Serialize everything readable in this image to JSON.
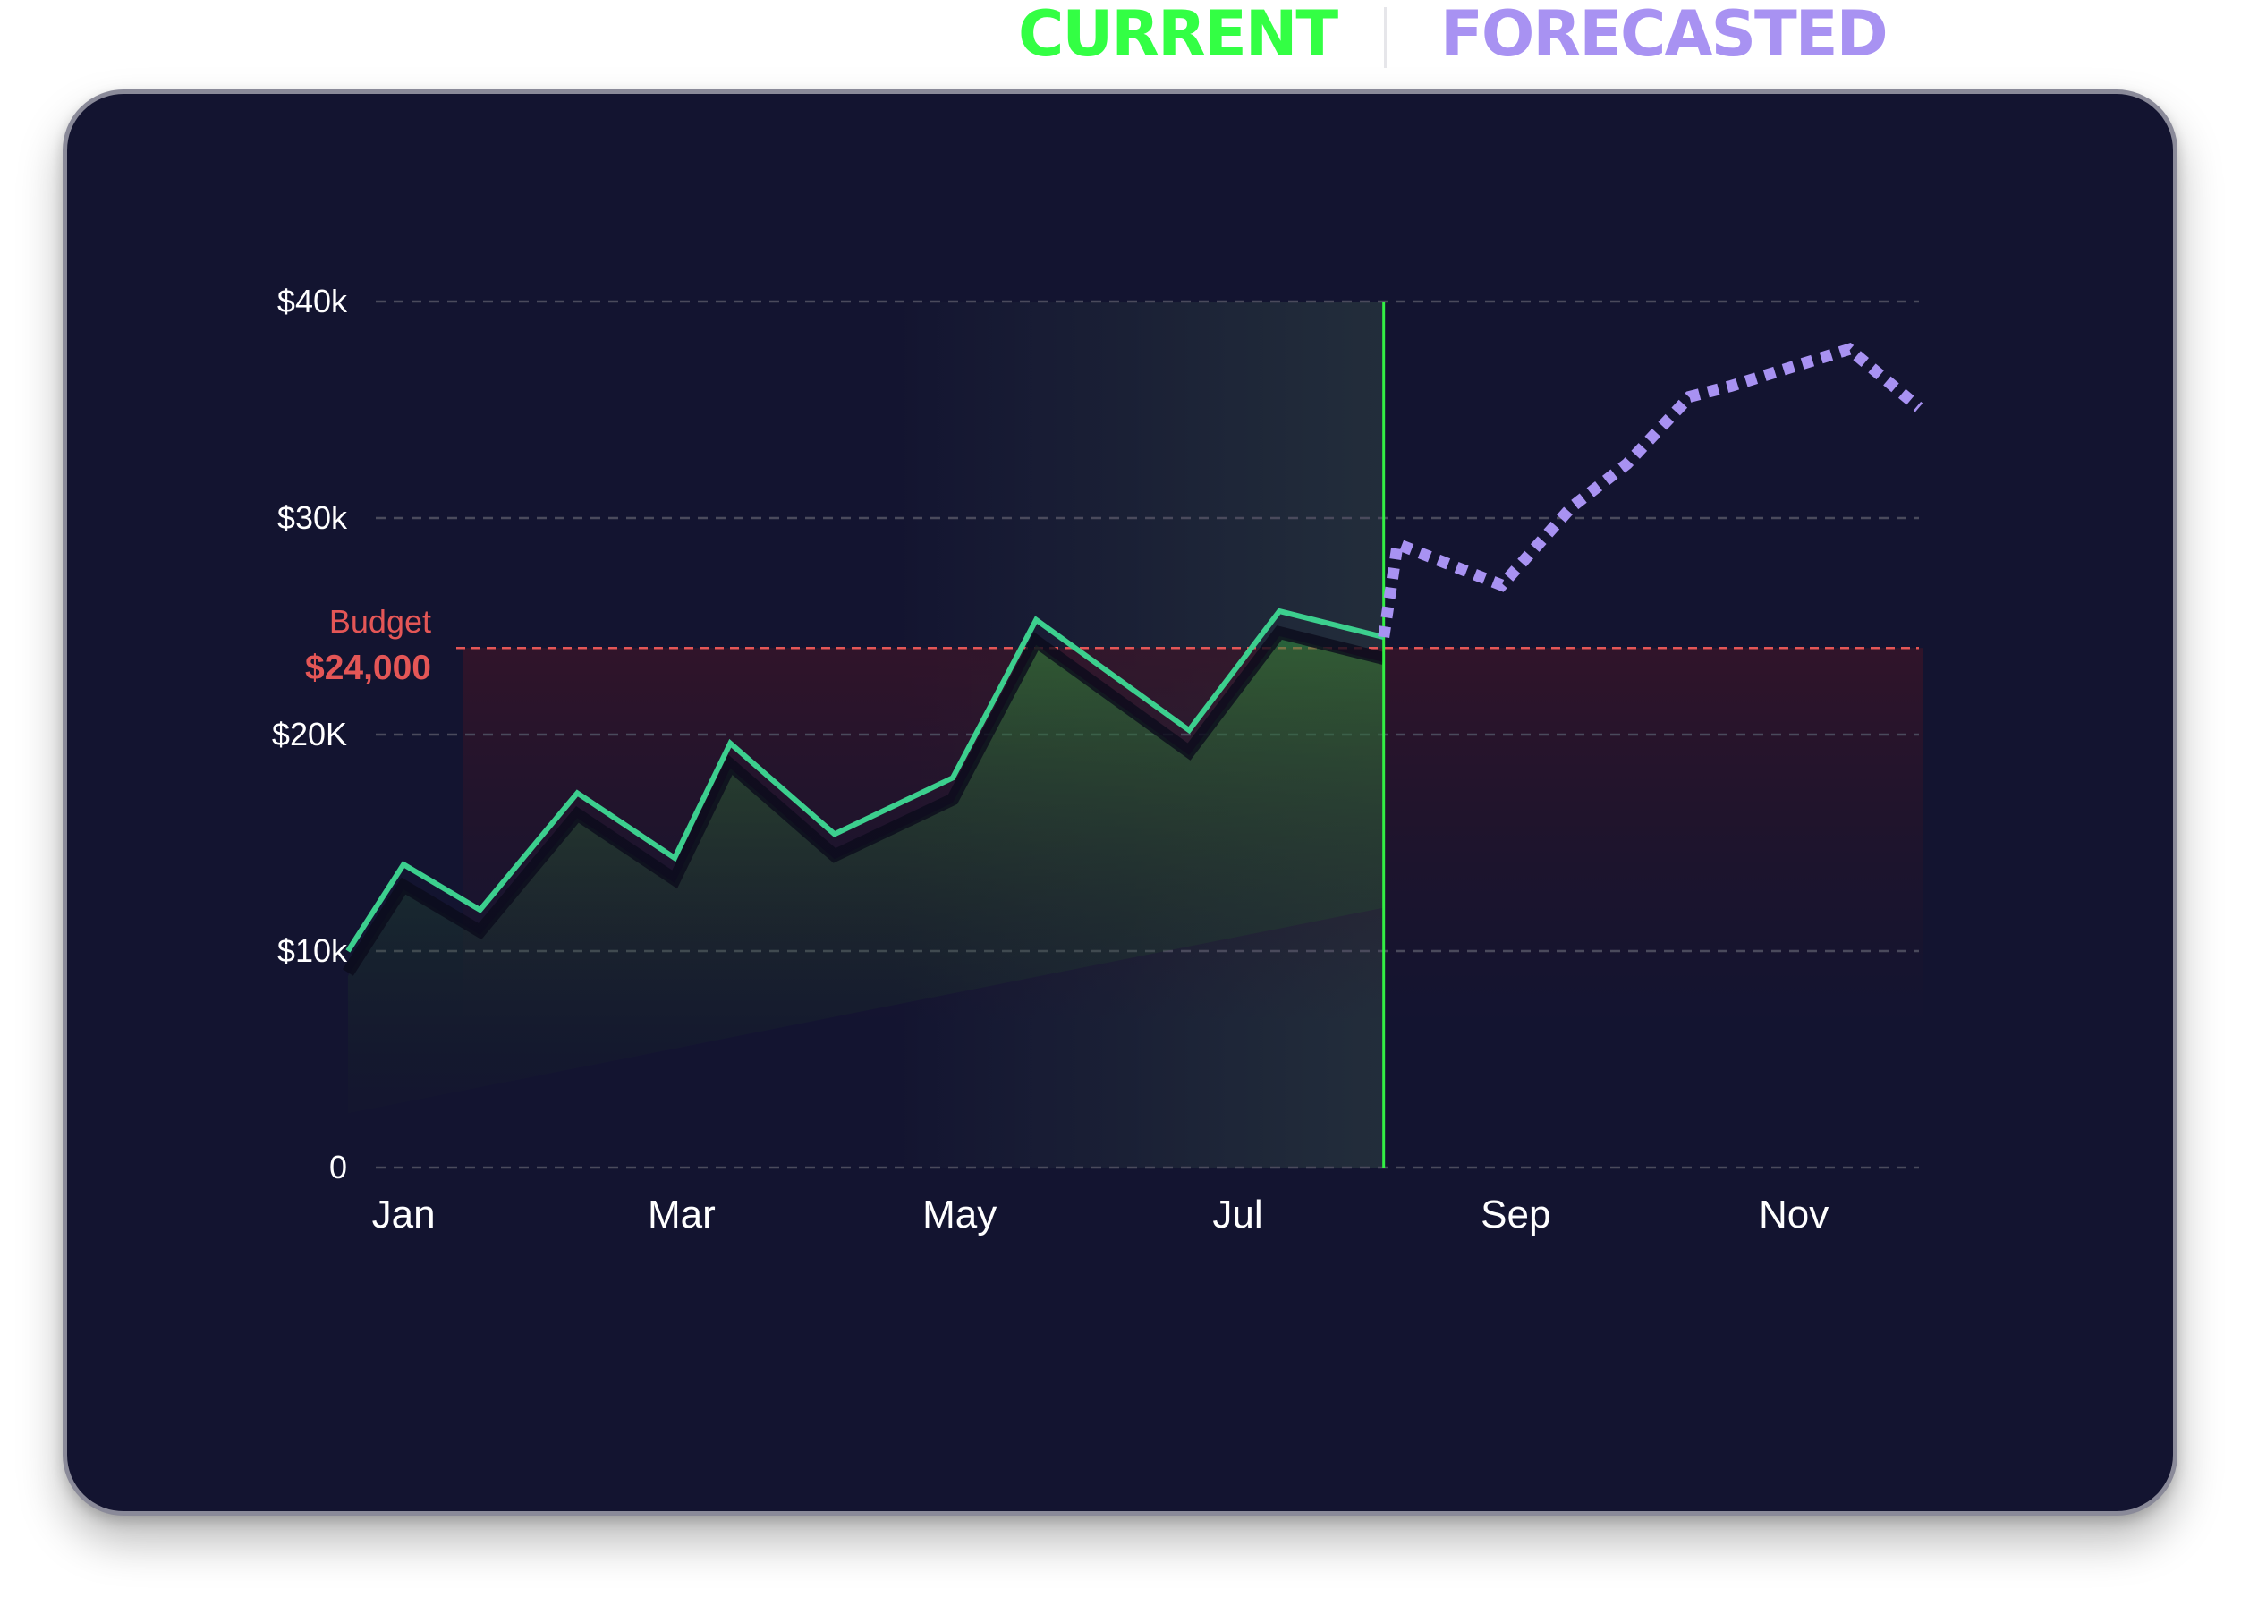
{
  "legend": {
    "current_label": "CURRENT",
    "forecast_label": "FORECASTED",
    "current_color": "#33ff44",
    "forecast_color": "#a892f2"
  },
  "chart_data": {
    "type": "line",
    "categories": [
      "Jan",
      "Mar",
      "May",
      "Jul",
      "Sep",
      "Nov"
    ],
    "y_tick_labels": [
      "0",
      "$10k",
      "$20K",
      "$30k",
      "$40k"
    ],
    "y_ticks": [
      0,
      10000,
      20000,
      30000,
      40000
    ],
    "ylim": [
      0,
      40000
    ],
    "xlim": [
      0.8,
      11.9
    ],
    "x_tick_positions": [
      1,
      3,
      5,
      7,
      9,
      11
    ],
    "grid": true,
    "series": [
      {
        "name": "CURRENT",
        "style": "solid",
        "color": "#3ccf8e",
        "x": [
          0.6,
          1,
          1.55,
          2.25,
          2.95,
          3.35,
          4.1,
          4.95,
          5.55,
          6.65,
          7.3,
          8.05
        ],
        "y": [
          10000,
          14000,
          11900,
          17300,
          14300,
          19600,
          15400,
          18000,
          25300,
          20200,
          25700,
          24500
        ]
      },
      {
        "name": "FORECASTED",
        "style": "dotted",
        "color": "#a892f2",
        "x": [
          8.05,
          8.15,
          8.9,
          9.4,
          9.8,
          10.25,
          10.55,
          11.4,
          11.9
        ],
        "y": [
          24500,
          28800,
          26900,
          30500,
          32500,
          35600,
          36100,
          37800,
          35100
        ]
      }
    ],
    "budget": {
      "label": "Budget",
      "value_label": "$24,000",
      "value": 24000,
      "color": "#e45656"
    },
    "current_marker_x": 8.05,
    "current_marker_color": "#33ee44"
  }
}
